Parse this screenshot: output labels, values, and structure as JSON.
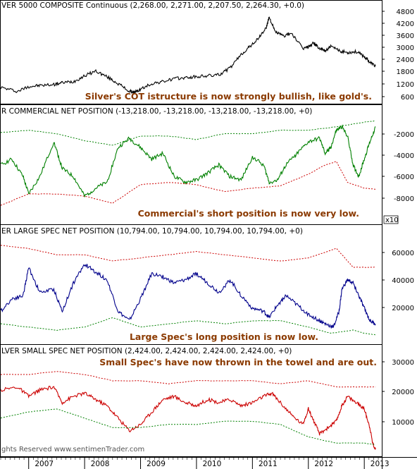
{
  "chart_data": [
    {
      "type": "line",
      "title": "VER 5000 COMPOSITE Continuous (2,268.00, 2,271.00, 2,207.50, 2,264.30, +0.0)",
      "annotation": "Silver's COT istructure is now strongly bullish, like gold's.",
      "x_range": [
        2006.5,
        2013.3
      ],
      "ylim": [
        400,
        5200
      ],
      "yticks": [
        "4800",
        "4200",
        "3600",
        "3000",
        "2400",
        "1800",
        "1200",
        "600"
      ],
      "series": [
        {
          "color": "#000000",
          "style": "solid",
          "x": [
            2006.5,
            2006.8,
            2007.0,
            2007.2,
            2007.45,
            2007.6,
            2007.8,
            2008.0,
            2008.2,
            2008.4,
            2008.6,
            2008.8,
            2008.9,
            2009.0,
            2009.2,
            2009.4,
            2009.6,
            2009.8,
            2010.0,
            2010.2,
            2010.4,
            2010.6,
            2010.8,
            2010.95,
            2011.1,
            2011.25,
            2011.3,
            2011.4,
            2011.55,
            2011.7,
            2011.9,
            2012.0,
            2012.1,
            2012.2,
            2012.3,
            2012.4,
            2012.55,
            2012.7,
            2012.85,
            2013.0,
            2013.1,
            2013.2
          ],
          "y": [
            1200,
            1000,
            1250,
            1300,
            1350,
            1450,
            1500,
            1800,
            2050,
            1750,
            1400,
            1000,
            950,
            1100,
            1400,
            1500,
            1650,
            1700,
            1750,
            1800,
            1850,
            2200,
            2900,
            3300,
            3700,
            4300,
            4850,
            4100,
            3850,
            4000,
            3200,
            3300,
            3500,
            3200,
            3100,
            3300,
            3100,
            3000,
            3050,
            2800,
            2500,
            2300
          ]
        }
      ]
    },
    {
      "type": "line",
      "title": "R COMMERCIAL NET POSITION (-13,218.00, -13,218.00, -13,218.00, -13,218.00, +0)",
      "annotation": "Commercial's short position is now very low.",
      "x_range": [
        2006.5,
        2013.3
      ],
      "ylim": [
        -9500,
        0
      ],
      "yticks": [
        "-2000",
        "-4000",
        "-6000",
        "-8000"
      ],
      "scale_label": "x10",
      "series": [
        {
          "color": "#008000",
          "style": "solid",
          "x": [
            2006.5,
            2006.7,
            2006.9,
            2007.0,
            2007.2,
            2007.45,
            2007.6,
            2007.8,
            2008.0,
            2008.2,
            2008.4,
            2008.6,
            2008.8,
            2009.0,
            2009.2,
            2009.4,
            2009.6,
            2009.8,
            2010.0,
            2010.2,
            2010.4,
            2010.6,
            2010.8,
            2011.0,
            2011.2,
            2011.3,
            2011.45,
            2011.6,
            2011.8,
            2012.0,
            2012.2,
            2012.3,
            2012.4,
            2012.5,
            2012.6,
            2012.7,
            2012.8,
            2012.9,
            2013.0,
            2013.1,
            2013.2
          ],
          "y": [
            -4500,
            -4000,
            -5500,
            -7000,
            -5500,
            -2500,
            -4800,
            -5500,
            -7200,
            -6500,
            -6000,
            -3000,
            -2200,
            -3000,
            -4000,
            -3500,
            -5500,
            -6000,
            -5800,
            -5200,
            -4500,
            -5500,
            -5800,
            -3800,
            -4500,
            -6000,
            -5800,
            -4500,
            -3500,
            -2500,
            -2200,
            -3500,
            -3000,
            -1500,
            -1200,
            -2000,
            -4500,
            -5500,
            -4000,
            -2500,
            -1200
          ]
        },
        {
          "color": "#008000",
          "style": "dotted",
          "x": [
            2006.5,
            2007.0,
            2007.5,
            2008.0,
            2008.5,
            2009.0,
            2009.5,
            2010.0,
            2010.5,
            2011.0,
            2011.5,
            2012.0,
            2012.5,
            2013.0,
            2013.2
          ],
          "y": [
            -1700,
            -1500,
            -1800,
            -2400,
            -2800,
            -2000,
            -2000,
            -2300,
            -1800,
            -1800,
            -1500,
            -1500,
            -1200,
            -800,
            -700
          ]
        },
        {
          "color": "#cc0000",
          "style": "dotted",
          "x": [
            2006.5,
            2007.0,
            2007.5,
            2008.0,
            2008.5,
            2009.0,
            2009.5,
            2010.0,
            2010.5,
            2011.0,
            2011.5,
            2012.0,
            2012.3,
            2012.5,
            2012.7,
            2013.0,
            2013.2
          ],
          "y": [
            -8000,
            -7000,
            -7000,
            -7200,
            -7800,
            -6200,
            -6000,
            -6200,
            -6800,
            -6500,
            -6300,
            -5300,
            -4500,
            -4200,
            -6000,
            -6500,
            -6600
          ]
        }
      ]
    },
    {
      "type": "line",
      "title": "ER LARGE SPEC NET POSITION (10,794.00, 10,794.00, 10,794.00, 10,794.00, +0)",
      "annotation": "Large Spec's long position is now low.",
      "x_range": [
        2006.5,
        2013.3
      ],
      "ylim": [
        0,
        70000
      ],
      "yticks": [
        "60000",
        "40000",
        "20000"
      ],
      "series": [
        {
          "color": "#00008b",
          "style": "solid",
          "x": [
            2006.5,
            2006.7,
            2006.9,
            2007.0,
            2007.2,
            2007.45,
            2007.6,
            2007.8,
            2008.0,
            2008.2,
            2008.4,
            2008.6,
            2008.8,
            2009.0,
            2009.2,
            2009.4,
            2009.6,
            2009.8,
            2010.0,
            2010.2,
            2010.4,
            2010.6,
            2010.8,
            2011.0,
            2011.2,
            2011.3,
            2011.45,
            2011.6,
            2011.8,
            2012.0,
            2012.2,
            2012.3,
            2012.45,
            2012.55,
            2012.6,
            2012.7,
            2012.8,
            2012.9,
            2013.0,
            2013.1,
            2013.2
          ],
          "y": [
            20000,
            28000,
            30000,
            48000,
            32000,
            34000,
            20000,
            38000,
            50000,
            45000,
            40000,
            20000,
            14000,
            28000,
            44000,
            42000,
            38000,
            40000,
            44000,
            38000,
            32000,
            40000,
            30000,
            22000,
            20000,
            16000,
            24000,
            30000,
            24000,
            18000,
            14000,
            12000,
            10000,
            20000,
            34000,
            40000,
            38000,
            30000,
            22000,
            14000,
            12000
          ]
        },
        {
          "color": "#cc0000",
          "style": "dotted",
          "x": [
            2006.5,
            2007.0,
            2007.5,
            2008.0,
            2008.5,
            2009.0,
            2009.5,
            2010.0,
            2010.5,
            2011.0,
            2011.5,
            2012.0,
            2012.5,
            2012.8,
            2013.0,
            2013.2
          ],
          "y": [
            62000,
            60000,
            56000,
            56000,
            52000,
            54000,
            56000,
            58000,
            56000,
            54000,
            52000,
            54000,
            60000,
            48000,
            48000,
            48000
          ]
        },
        {
          "color": "#008000",
          "style": "dotted",
          "x": [
            2006.5,
            2007.0,
            2007.5,
            2008.0,
            2008.5,
            2009.0,
            2009.5,
            2010.0,
            2010.5,
            2011.0,
            2011.5,
            2012.0,
            2012.4,
            2012.8,
            2013.0,
            2013.2
          ],
          "y": [
            12000,
            10000,
            8000,
            10000,
            16000,
            10000,
            12000,
            14000,
            12000,
            14000,
            14000,
            10000,
            6000,
            8000,
            6000,
            5000
          ]
        }
      ]
    },
    {
      "type": "line",
      "title": "LVER SMALL SPEC NET POSITION (2,424.00, 2,424.00, 2,424.00, 2,424.00, +0)",
      "annotation": "Small Spec's have now thrown in the towel and are out.",
      "x_range": [
        2006.5,
        2013.3
      ],
      "ylim": [
        0,
        33000
      ],
      "yticks": [
        "30000",
        "20000",
        "10000"
      ],
      "series": [
        {
          "color": "#cc0000",
          "style": "solid",
          "x": [
            2006.5,
            2006.8,
            2007.0,
            2007.2,
            2007.45,
            2007.6,
            2007.8,
            2008.0,
            2008.2,
            2008.4,
            2008.6,
            2008.8,
            2009.0,
            2009.2,
            2009.4,
            2009.6,
            2009.8,
            2010.0,
            2010.2,
            2010.4,
            2010.6,
            2010.8,
            2011.0,
            2011.2,
            2011.35,
            2011.5,
            2011.7,
            2011.9,
            2012.0,
            2012.1,
            2012.2,
            2012.35,
            2012.5,
            2012.6,
            2012.7,
            2012.85,
            2013.0,
            2013.1,
            2013.15,
            2013.2
          ],
          "y": [
            21000,
            22000,
            19000,
            21000,
            22000,
            17000,
            19000,
            20000,
            18000,
            16000,
            12000,
            8000,
            10000,
            14000,
            18000,
            19000,
            17000,
            16000,
            18000,
            17000,
            18000,
            16000,
            17000,
            19000,
            20000,
            17000,
            13000,
            10000,
            15000,
            11000,
            7000,
            9000,
            11000,
            16000,
            19000,
            17000,
            15000,
            9000,
            4000,
            2000
          ]
        },
        {
          "color": "#cc0000",
          "style": "dotted",
          "x": [
            2006.5,
            2007.0,
            2007.5,
            2008.0,
            2008.5,
            2009.0,
            2009.5,
            2010.0,
            2010.5,
            2011.0,
            2011.5,
            2012.0,
            2012.5,
            2013.0,
            2013.2
          ],
          "y": [
            26000,
            26000,
            27000,
            26000,
            24000,
            24000,
            23000,
            24000,
            24000,
            24000,
            23000,
            24000,
            22000,
            22000,
            22000
          ]
        },
        {
          "color": "#008000",
          "style": "dotted",
          "x": [
            2006.5,
            2007.0,
            2007.5,
            2008.0,
            2008.5,
            2009.0,
            2009.5,
            2010.0,
            2010.5,
            2011.0,
            2011.5,
            2012.0,
            2012.5,
            2013.0,
            2013.2
          ],
          "y": [
            12000,
            14000,
            15000,
            12000,
            9000,
            9000,
            10000,
            10000,
            11000,
            11000,
            10000,
            6000,
            4000,
            4000,
            3500
          ]
        }
      ]
    }
  ],
  "x_axis": {
    "labels": [
      "2007",
      "2008",
      "2009",
      "2010",
      "2011",
      "2012",
      "2013"
    ],
    "positions": [
      2007.0,
      2008.0,
      2009.0,
      2010.0,
      2011.0,
      2012.0,
      2013.0
    ]
  },
  "copyright": "ghts Reserved  www.sentimenTrader.com"
}
